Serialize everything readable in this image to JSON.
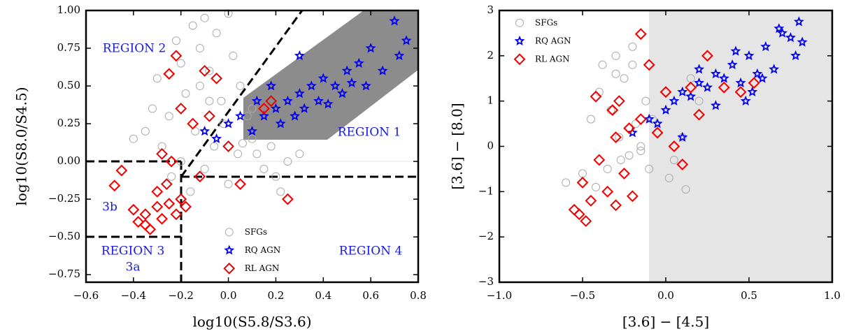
{
  "chart_data": [
    {
      "type": "scatter",
      "xlabel": "log10(S5.8/S3.6)",
      "ylabel": "log10(S8.0/S4.5)",
      "xlim": [
        -0.6,
        0.8
      ],
      "ylim": [
        -0.8,
        1.0
      ],
      "xticks": [
        {
          "value": -0.6,
          "label": "−0.6"
        },
        {
          "value": -0.4,
          "label": "−0.4"
        },
        {
          "value": -0.2,
          "label": "−0.2"
        },
        {
          "value": 0,
          "label": "0.0"
        },
        0.2,
        0.4,
        0.6,
        0.8
      ],
      "yticks": [
        {
          "value": -0.75,
          "label": "−0.75"
        },
        {
          "value": -0.5,
          "label": "−0.50"
        },
        {
          "value": -0.25,
          "label": "−0.25"
        },
        {
          "value": 0,
          "label": "0.00"
        },
        0.25,
        {
          "value": 0.5,
          "label": "0.50"
        },
        0.75,
        {
          "value": 1,
          "label": "1.00"
        }
      ],
      "legend_loc": "lower center",
      "annotations": [
        "REGION 2",
        "REGION 1",
        "3b",
        "REGION 3",
        "3a",
        "REGION 4"
      ],
      "series": [
        {
          "name": "SFGs",
          "color": "#aaaaaa",
          "marker": "circle",
          "x": [
            -0.35,
            -0.3,
            -0.25,
            -0.22,
            -0.2,
            -0.18,
            -0.15,
            -0.12,
            -0.1,
            -0.08,
            -0.05,
            -0.03,
            0.0,
            0.02,
            0.05,
            0.08,
            0.1,
            0.12,
            0.15,
            0.18,
            0.2,
            0.25,
            -0.28,
            -0.14,
            -0.06,
            0.04,
            -0.1,
            -0.2,
            -0.02,
            0.1,
            -0.16,
            -0.24,
            0.0,
            0.06,
            -0.08,
            -0.12,
            0.22,
            0.3,
            -0.4,
            -0.32
          ],
          "values": [
            0.2,
            0.55,
            0.3,
            0.8,
            0.65,
            0.45,
            0.9,
            0.75,
            0.95,
            0.6,
            0.85,
            0.4,
            0.98,
            0.7,
            0.5,
            0.3,
            0.15,
            0.05,
            -0.05,
            0.1,
            -0.1,
            0.0,
            0.1,
            0.2,
            0.1,
            0.05,
            -0.05,
            0.0,
            0.25,
            0.35,
            -0.2,
            -0.1,
            -0.15,
            0.12,
            0.4,
            0.5,
            -0.2,
            0.05,
            0.15,
            0.35
          ]
        },
        {
          "name": "RQ AGN",
          "color": "#0000ee",
          "marker": "star",
          "x": [
            0.05,
            0.1,
            0.15,
            0.2,
            0.22,
            0.25,
            0.28,
            0.3,
            0.32,
            0.35,
            0.38,
            0.4,
            0.42,
            0.45,
            0.48,
            0.5,
            0.52,
            0.55,
            0.58,
            0.6,
            0.65,
            0.7,
            0.72,
            0.75,
            -0.1,
            -0.05,
            0.0,
            0.12,
            0.3,
            0.18
          ],
          "values": [
            0.3,
            0.2,
            0.3,
            0.35,
            0.25,
            0.4,
            0.3,
            0.45,
            0.35,
            0.5,
            0.4,
            0.55,
            0.38,
            0.5,
            0.45,
            0.6,
            0.52,
            0.65,
            0.5,
            0.75,
            0.6,
            0.93,
            0.7,
            0.8,
            0.2,
            0.15,
            0.25,
            0.4,
            0.7,
            0.5
          ]
        },
        {
          "name": "RL AGN",
          "color": "#ee0000",
          "marker": "diamond",
          "x": [
            -0.4,
            -0.38,
            -0.35,
            -0.33,
            -0.3,
            -0.28,
            -0.25,
            -0.22,
            -0.2,
            -0.18,
            -0.35,
            -0.3,
            -0.26,
            -0.24,
            -0.45,
            -0.48,
            -0.2,
            -0.15,
            -0.1,
            -0.05,
            -0.08,
            0.0,
            0.05,
            0.15,
            0.25,
            -0.22,
            -0.12,
            -0.28,
            0.18,
            -0.25
          ],
          "values": [
            -0.32,
            -0.4,
            -0.35,
            -0.45,
            -0.3,
            -0.38,
            -0.28,
            -0.35,
            -0.25,
            -0.3,
            -0.42,
            -0.2,
            -0.15,
            0.0,
            -0.06,
            -0.16,
            0.35,
            0.25,
            0.6,
            0.55,
            0.3,
            0.1,
            -0.15,
            0.35,
            -0.25,
            0.7,
            -0.1,
            0.05,
            0.4,
            0.58
          ]
        }
      ]
    },
    {
      "type": "scatter",
      "xlabel": "[3.6] − [4.5]",
      "ylabel": "[3.6] − [8.0]",
      "xlim": [
        -1.0,
        1.0
      ],
      "ylim": [
        -3,
        3
      ],
      "xticks": [
        {
          "value": -1,
          "label": "−1.0"
        },
        {
          "value": -0.5,
          "label": "−0.5"
        },
        {
          "value": 0,
          "label": "0.0"
        },
        0.5,
        {
          "value": 1,
          "label": "1.0"
        }
      ],
      "yticks": [
        {
          "value": -3,
          "label": "−3"
        },
        {
          "value": -2,
          "label": "−2"
        },
        {
          "value": -1,
          "label": "−1"
        },
        0,
        1,
        2,
        3
      ],
      "legend_loc": "upper left",
      "series": [
        {
          "name": "SFGs",
          "color": "#aaaaaa",
          "marker": "circle",
          "x": [
            -0.6,
            -0.5,
            -0.45,
            -0.4,
            -0.38,
            -0.35,
            -0.3,
            -0.28,
            -0.25,
            -0.22,
            -0.2,
            -0.18,
            -0.15,
            -0.12,
            -0.1,
            -0.05,
            0.0,
            0.05,
            0.1,
            0.15,
            -0.42,
            -0.33,
            -0.27,
            -0.2,
            -0.08,
            0.02,
            0.2,
            -0.3,
            -0.15,
            0.12
          ],
          "values": [
            -0.8,
            -0.6,
            0.6,
            1.2,
            1.8,
            -0.5,
            2.0,
            0.2,
            1.5,
            -0.2,
            1.8,
            0.5,
            0.0,
            1.0,
            -0.5,
            0.3,
            1.2,
            -0.3,
            0.2,
            1.5,
            -0.9,
            0.8,
            -0.3,
            2.2,
            0.6,
            -0.7,
            1.0,
            1.6,
            -0.1,
            -0.95
          ]
        },
        {
          "name": "RQ AGN",
          "color": "#0000ee",
          "marker": "star",
          "x": [
            -0.2,
            -0.1,
            0.0,
            0.05,
            0.1,
            0.15,
            0.2,
            0.25,
            0.3,
            0.35,
            0.4,
            0.45,
            0.5,
            0.55,
            0.6,
            0.65,
            0.7,
            0.75,
            0.8,
            0.82,
            0.78,
            0.68,
            0.52,
            0.42,
            0.3,
            0.1,
            -0.05,
            0.2,
            0.58,
            0.48
          ],
          "values": [
            0.3,
            0.6,
            0.8,
            1.0,
            1.2,
            1.1,
            1.4,
            1.3,
            1.6,
            1.5,
            1.8,
            1.4,
            2.0,
            1.6,
            2.2,
            1.7,
            2.5,
            2.4,
            2.75,
            2.3,
            2.0,
            2.6,
            1.2,
            2.1,
            0.9,
            0.2,
            0.5,
            1.7,
            1.5,
            1.0
          ]
        },
        {
          "name": "RL AGN",
          "color": "#ee0000",
          "marker": "diamond",
          "x": [
            -0.55,
            -0.52,
            -0.5,
            -0.48,
            -0.45,
            -0.42,
            -0.4,
            -0.35,
            -0.32,
            -0.3,
            -0.28,
            -0.25,
            -0.22,
            -0.2,
            -0.15,
            -0.1,
            -0.05,
            0.0,
            0.05,
            0.1,
            0.15,
            0.2,
            0.25,
            0.35,
            0.45,
            0.53,
            -0.15,
            -0.3
          ],
          "values": [
            -1.4,
            -1.5,
            -0.8,
            -1.65,
            -1.2,
            1.1,
            -0.3,
            -1.0,
            0.8,
            -1.3,
            1.0,
            -0.6,
            0.4,
            -1.1,
            0.6,
            1.8,
            0.3,
            1.2,
            0.0,
            -0.4,
            1.3,
            0.7,
            2.0,
            1.3,
            1.2,
            1.4,
            2.48,
            0.2
          ]
        }
      ]
    }
  ]
}
